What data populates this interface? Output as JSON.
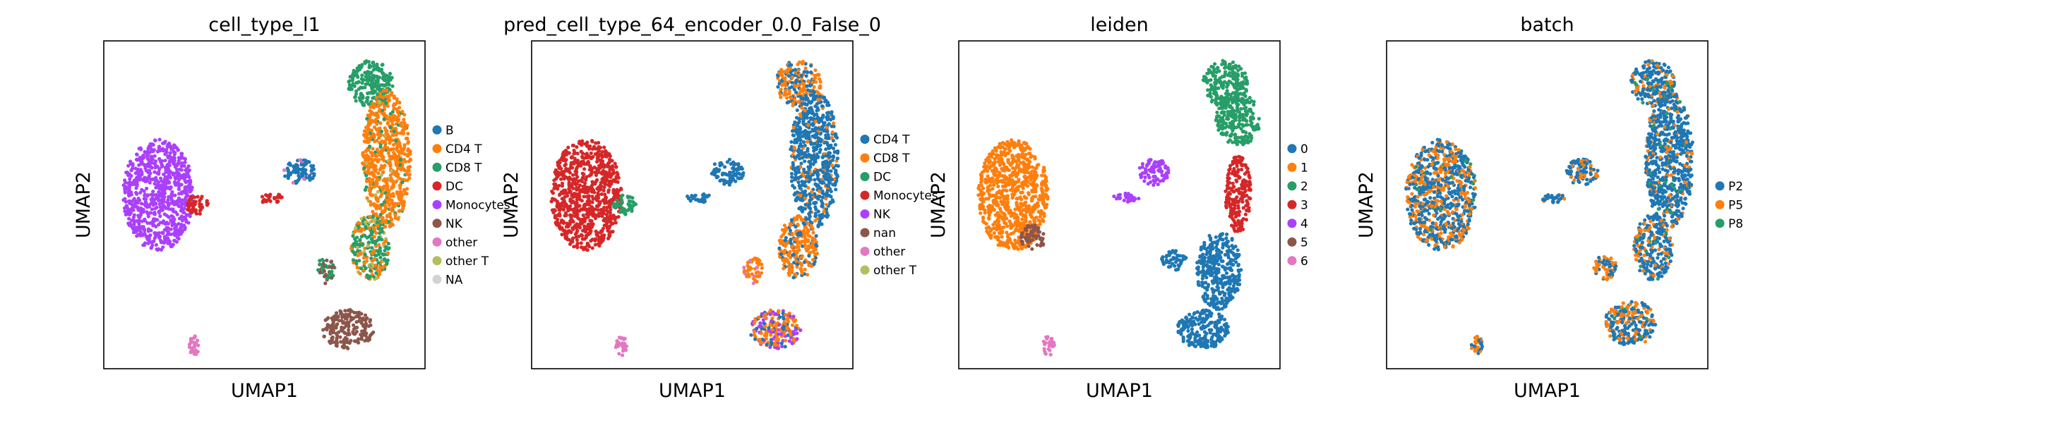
{
  "chart_data": [
    {
      "type": "scatter",
      "title": "cell_type_l1",
      "xlabel": "UMAP1",
      "ylabel": "UMAP2",
      "legend_placement": "right",
      "legend": [
        {
          "label": "B",
          "color": "#1f77b4"
        },
        {
          "label": "CD4 T",
          "color": "#ff7f0e"
        },
        {
          "label": "CD8 T",
          "color": "#279e68"
        },
        {
          "label": "DC",
          "color": "#d62728"
        },
        {
          "label": "Monocytes",
          "color": "#aa40fc"
        },
        {
          "label": "NK",
          "color": "#8c564b"
        },
        {
          "label": "other",
          "color": "#e377c2"
        },
        {
          "label": "other T",
          "color": "#b5bd61"
        },
        {
          "label": "NA",
          "color": "#d3d3d3"
        }
      ],
      "regions": [
        {
          "name": "left-cluster",
          "x": 0.17,
          "y": 0.47,
          "rx": 0.11,
          "ry": 0.17,
          "mix": [
            [
              "Monocytes",
              1.0
            ]
          ]
        },
        {
          "name": "left-nub",
          "x": 0.29,
          "y": 0.5,
          "rx": 0.035,
          "ry": 0.03,
          "mix": [
            [
              "DC",
              1.0
            ]
          ]
        },
        {
          "name": "middle-blob",
          "x": 0.61,
          "y": 0.4,
          "rx": 0.05,
          "ry": 0.04,
          "mix": [
            [
              "B",
              0.92
            ],
            [
              "other",
              0.08
            ]
          ]
        },
        {
          "name": "middle-stream",
          "x": 0.52,
          "y": 0.48,
          "rx": 0.04,
          "ry": 0.015,
          "mix": [
            [
              "DC",
              1.0
            ]
          ]
        },
        {
          "name": "top-right",
          "x": 0.83,
          "y": 0.13,
          "rx": 0.07,
          "ry": 0.07,
          "mix": [
            [
              "CD8 T",
              1.0
            ]
          ]
        },
        {
          "name": "right-column",
          "x": 0.88,
          "y": 0.36,
          "rx": 0.075,
          "ry": 0.21,
          "mix": [
            [
              "CD4 T",
              0.85
            ],
            [
              "CD8 T",
              0.1
            ],
            [
              "other T",
              0.05
            ]
          ]
        },
        {
          "name": "right-lower-stem",
          "x": 0.83,
          "y": 0.63,
          "rx": 0.06,
          "ry": 0.1,
          "mix": [
            [
              "CD8 T",
              0.55
            ],
            [
              "CD4 T",
              0.3
            ],
            [
              "other T",
              0.15
            ]
          ]
        },
        {
          "name": "bottom-branch",
          "x": 0.69,
          "y": 0.7,
          "rx": 0.03,
          "ry": 0.04,
          "mix": [
            [
              "CD8 T",
              0.6
            ],
            [
              "NK",
              0.4
            ]
          ]
        },
        {
          "name": "bottom-blob",
          "x": 0.76,
          "y": 0.88,
          "rx": 0.08,
          "ry": 0.06,
          "mix": [
            [
              "NK",
              1.0
            ]
          ]
        },
        {
          "name": "bottom-small",
          "x": 0.28,
          "y": 0.93,
          "rx": 0.018,
          "ry": 0.03,
          "mix": [
            [
              "other",
              1.0
            ]
          ]
        }
      ]
    },
    {
      "type": "scatter",
      "title": "pred_cell_type_64_encoder_0.0_False_0",
      "xlabel": "UMAP1",
      "ylabel": "UMAP2",
      "legend_placement": "right",
      "legend": [
        {
          "label": "CD4 T",
          "color": "#1f77b4"
        },
        {
          "label": "CD8 T",
          "color": "#ff7f0e"
        },
        {
          "label": "DC",
          "color": "#279e68"
        },
        {
          "label": "Monocytes",
          "color": "#d62728"
        },
        {
          "label": "NK",
          "color": "#aa40fc"
        },
        {
          "label": "nan",
          "color": "#8c564b"
        },
        {
          "label": "other",
          "color": "#e377c2"
        },
        {
          "label": "other T",
          "color": "#b5bd61"
        }
      ],
      "regions": [
        {
          "name": "left-cluster",
          "x": 0.17,
          "y": 0.47,
          "rx": 0.11,
          "ry": 0.17,
          "mix": [
            [
              "Monocytes",
              1.0
            ]
          ]
        },
        {
          "name": "left-nub",
          "x": 0.29,
          "y": 0.5,
          "rx": 0.035,
          "ry": 0.03,
          "mix": [
            [
              "DC",
              1.0
            ]
          ]
        },
        {
          "name": "middle-blob",
          "x": 0.61,
          "y": 0.4,
          "rx": 0.05,
          "ry": 0.04,
          "mix": [
            [
              "CD4 T",
              1.0
            ]
          ]
        },
        {
          "name": "middle-stream",
          "x": 0.52,
          "y": 0.48,
          "rx": 0.04,
          "ry": 0.015,
          "mix": [
            [
              "CD4 T",
              1.0
            ]
          ]
        },
        {
          "name": "top-right",
          "x": 0.83,
          "y": 0.13,
          "rx": 0.07,
          "ry": 0.07,
          "mix": [
            [
              "CD8 T",
              0.6
            ],
            [
              "CD4 T",
              0.4
            ]
          ]
        },
        {
          "name": "right-column",
          "x": 0.88,
          "y": 0.36,
          "rx": 0.075,
          "ry": 0.21,
          "mix": [
            [
              "CD4 T",
              0.85
            ],
            [
              "CD8 T",
              0.15
            ]
          ]
        },
        {
          "name": "right-lower-stem",
          "x": 0.83,
          "y": 0.63,
          "rx": 0.06,
          "ry": 0.1,
          "mix": [
            [
              "CD8 T",
              0.7
            ],
            [
              "CD4 T",
              0.3
            ]
          ]
        },
        {
          "name": "bottom-branch",
          "x": 0.69,
          "y": 0.7,
          "rx": 0.03,
          "ry": 0.04,
          "mix": [
            [
              "CD8 T",
              0.9
            ],
            [
              "other",
              0.1
            ]
          ]
        },
        {
          "name": "bottom-blob",
          "x": 0.76,
          "y": 0.88,
          "rx": 0.08,
          "ry": 0.06,
          "mix": [
            [
              "CD8 T",
              0.5
            ],
            [
              "NK",
              0.35
            ],
            [
              "CD4 T",
              0.15
            ]
          ]
        },
        {
          "name": "bottom-small",
          "x": 0.28,
          "y": 0.93,
          "rx": 0.018,
          "ry": 0.03,
          "mix": [
            [
              "other",
              1.0
            ]
          ]
        }
      ]
    },
    {
      "type": "scatter",
      "title": "leiden",
      "xlabel": "UMAP1",
      "ylabel": "UMAP2",
      "legend_placement": "right",
      "legend": [
        {
          "label": "0",
          "color": "#1f77b4"
        },
        {
          "label": "1",
          "color": "#ff7f0e"
        },
        {
          "label": "2",
          "color": "#279e68"
        },
        {
          "label": "3",
          "color": "#d62728"
        },
        {
          "label": "4",
          "color": "#aa40fc"
        },
        {
          "label": "5",
          "color": "#8c564b"
        },
        {
          "label": "6",
          "color": "#e377c2"
        }
      ],
      "regions": [
        {
          "name": "left-cluster",
          "x": 0.17,
          "y": 0.47,
          "rx": 0.11,
          "ry": 0.17,
          "mix": [
            [
              "1",
              1.0
            ]
          ]
        },
        {
          "name": "left-bottom",
          "x": 0.23,
          "y": 0.6,
          "rx": 0.04,
          "ry": 0.04,
          "mix": [
            [
              "5",
              1.0
            ]
          ]
        },
        {
          "name": "middle-blob",
          "x": 0.61,
          "y": 0.4,
          "rx": 0.05,
          "ry": 0.04,
          "mix": [
            [
              "4",
              1.0
            ]
          ]
        },
        {
          "name": "middle-stream",
          "x": 0.52,
          "y": 0.48,
          "rx": 0.04,
          "ry": 0.015,
          "mix": [
            [
              "4",
              1.0
            ]
          ]
        },
        {
          "name": "top-right",
          "x": 0.83,
          "y": 0.13,
          "rx": 0.07,
          "ry": 0.07,
          "mix": [
            [
              "2",
              1.0
            ]
          ]
        },
        {
          "name": "right-upper",
          "x": 0.87,
          "y": 0.24,
          "rx": 0.07,
          "ry": 0.08,
          "mix": [
            [
              "2",
              1.0
            ]
          ]
        },
        {
          "name": "right-mid",
          "x": 0.87,
          "y": 0.47,
          "rx": 0.04,
          "ry": 0.12,
          "mix": [
            [
              "3",
              1.0
            ]
          ]
        },
        {
          "name": "right-lower-stem",
          "x": 0.81,
          "y": 0.7,
          "rx": 0.07,
          "ry": 0.12,
          "mix": [
            [
              "0",
              1.0
            ]
          ]
        },
        {
          "name": "bottom-branch",
          "x": 0.67,
          "y": 0.67,
          "rx": 0.04,
          "ry": 0.03,
          "mix": [
            [
              "0",
              1.0
            ]
          ]
        },
        {
          "name": "bottom-blob",
          "x": 0.76,
          "y": 0.88,
          "rx": 0.08,
          "ry": 0.06,
          "mix": [
            [
              "0",
              1.0
            ]
          ]
        },
        {
          "name": "bottom-small",
          "x": 0.28,
          "y": 0.93,
          "rx": 0.018,
          "ry": 0.03,
          "mix": [
            [
              "6",
              1.0
            ]
          ]
        }
      ]
    },
    {
      "type": "scatter",
      "title": "batch",
      "xlabel": "UMAP1",
      "ylabel": "UMAP2",
      "legend_placement": "right",
      "legend": [
        {
          "label": "P2",
          "color": "#1f77b4"
        },
        {
          "label": "P5",
          "color": "#ff7f0e"
        },
        {
          "label": "P8",
          "color": "#279e68"
        }
      ],
      "regions": [
        {
          "name": "left-cluster",
          "x": 0.17,
          "y": 0.47,
          "rx": 0.11,
          "ry": 0.17,
          "mix": [
            [
              "P2",
              0.55
            ],
            [
              "P5",
              0.4
            ],
            [
              "P8",
              0.05
            ]
          ]
        },
        {
          "name": "middle-blob",
          "x": 0.61,
          "y": 0.4,
          "rx": 0.05,
          "ry": 0.04,
          "mix": [
            [
              "P2",
              0.7
            ],
            [
              "P5",
              0.3
            ]
          ]
        },
        {
          "name": "middle-stream",
          "x": 0.52,
          "y": 0.48,
          "rx": 0.04,
          "ry": 0.015,
          "mix": [
            [
              "P2",
              0.8
            ],
            [
              "P5",
              0.2
            ]
          ]
        },
        {
          "name": "top-right",
          "x": 0.83,
          "y": 0.13,
          "rx": 0.07,
          "ry": 0.07,
          "mix": [
            [
              "P2",
              0.7
            ],
            [
              "P5",
              0.2
            ],
            [
              "P8",
              0.1
            ]
          ]
        },
        {
          "name": "right-column",
          "x": 0.88,
          "y": 0.36,
          "rx": 0.075,
          "ry": 0.21,
          "mix": [
            [
              "P2",
              0.8
            ],
            [
              "P5",
              0.15
            ],
            [
              "P8",
              0.05
            ]
          ]
        },
        {
          "name": "right-lower-stem",
          "x": 0.83,
          "y": 0.63,
          "rx": 0.06,
          "ry": 0.1,
          "mix": [
            [
              "P2",
              0.7
            ],
            [
              "P5",
              0.25
            ],
            [
              "P8",
              0.05
            ]
          ]
        },
        {
          "name": "bottom-branch",
          "x": 0.68,
          "y": 0.69,
          "rx": 0.035,
          "ry": 0.04,
          "mix": [
            [
              "P5",
              0.6
            ],
            [
              "P2",
              0.4
            ]
          ]
        },
        {
          "name": "bottom-blob",
          "x": 0.76,
          "y": 0.86,
          "rx": 0.08,
          "ry": 0.07,
          "mix": [
            [
              "P2",
              0.6
            ],
            [
              "P5",
              0.35
            ],
            [
              "P8",
              0.05
            ]
          ]
        },
        {
          "name": "bottom-small",
          "x": 0.28,
          "y": 0.93,
          "rx": 0.018,
          "ry": 0.03,
          "mix": [
            [
              "P5",
              0.5
            ],
            [
              "P2",
              0.5
            ]
          ]
        }
      ]
    }
  ]
}
